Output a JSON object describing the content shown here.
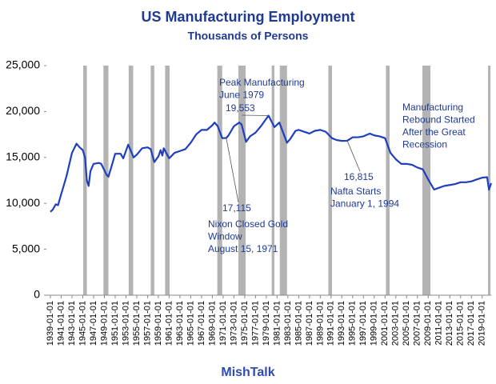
{
  "chart_data": {
    "type": "line",
    "title": "US Manufacturing Employment",
    "subtitle": "Thousands of Persons",
    "footer": "MishTalk",
    "color": "#1f3fbf",
    "recession_color": "#b3b3b3",
    "x": [
      "1939-01-01",
      "1939-06-01",
      "1940-01-01",
      "1940-06-01",
      "1941-01-01",
      "1942-01-01",
      "1943-01-01",
      "1943-11-01",
      "1944-06-01",
      "1945-01-01",
      "1945-06-01",
      "1945-10-01",
      "1946-02-01",
      "1946-06-01",
      "1947-01-01",
      "1948-01-01",
      "1948-06-01",
      "1949-06-01",
      "1949-10-01",
      "1950-06-01",
      "1951-01-01",
      "1952-01-01",
      "1952-07-01",
      "1953-06-01",
      "1954-06-01",
      "1955-01-01",
      "1956-01-01",
      "1957-01-01",
      "1957-08-01",
      "1958-04-01",
      "1959-01-01",
      "1959-06-01",
      "1959-10-01",
      "1960-01-01",
      "1961-01-01",
      "1962-01-01",
      "1963-01-01",
      "1964-01-01",
      "1965-01-01",
      "1966-01-01",
      "1967-01-01",
      "1968-01-01",
      "1969-01-01",
      "1969-06-01",
      "1970-01-01",
      "1970-11-01",
      "1971-08-01",
      "1972-01-01",
      "1973-01-01",
      "1974-01-01",
      "1974-06-01",
      "1975-04-01",
      "1976-01-01",
      "1977-01-01",
      "1978-01-01",
      "1979-06-01",
      "1980-07-01",
      "1981-06-01",
      "1982-11-01",
      "1983-06-01",
      "1984-06-01",
      "1985-01-01",
      "1986-01-01",
      "1987-01-01",
      "1988-01-01",
      "1989-01-01",
      "1990-01-01",
      "1991-03-01",
      "1992-01-01",
      "1993-01-01",
      "1994-01-01",
      "1995-01-01",
      "1996-01-01",
      "1997-01-01",
      "1998-03-01",
      "1999-01-01",
      "2000-01-01",
      "2001-01-01",
      "2002-01-01",
      "2003-01-01",
      "2004-01-01",
      "2005-01-01",
      "2006-01-01",
      "2007-01-01",
      "2008-01-01",
      "2009-01-01",
      "2010-02-01",
      "2011-01-01",
      "2012-01-01",
      "2013-01-01",
      "2014-01-01",
      "2015-01-01",
      "2016-01-01",
      "2017-01-01",
      "2018-01-01",
      "2019-01-01",
      "2019-12-01",
      "2020-04-01",
      "2020-09-01"
    ],
    "values": [
      9077,
      9300,
      9900,
      9800,
      11000,
      13000,
      15500,
      16500,
      16100,
      15800,
      15000,
      12500,
      11900,
      13500,
      14300,
      14400,
      14300,
      13100,
      12900,
      14200,
      15400,
      15400,
      14900,
      16400,
      15000,
      15300,
      16000,
      16100,
      15900,
      14500,
      15100,
      15800,
      15200,
      16000,
      14900,
      15500,
      15700,
      15900,
      16600,
      17500,
      18000,
      18000,
      18500,
      18800,
      18400,
      17100,
      17115,
      17400,
      18400,
      18800,
      18600,
      16700,
      17300,
      17700,
      18400,
      19553,
      18300,
      18800,
      16600,
      17000,
      17900,
      18000,
      17800,
      17600,
      17900,
      18000,
      17800,
      17100,
      16900,
      16800,
      16815,
      17200,
      17200,
      17300,
      17600,
      17400,
      17300,
      17100,
      15500,
      14800,
      14300,
      14300,
      14200,
      13900,
      13700,
      12600,
      11500,
      11700,
      11900,
      12000,
      12100,
      12300,
      12300,
      12400,
      12600,
      12800,
      12850,
      11500,
      12200
    ],
    "recessions": [
      [
        "1945-02-01",
        "1945-10-01"
      ],
      [
        "1948-11-01",
        "1949-10-01"
      ],
      [
        "1953-07-01",
        "1954-05-01"
      ],
      [
        "1957-08-01",
        "1958-04-01"
      ],
      [
        "1960-04-01",
        "1961-02-01"
      ],
      [
        "1969-12-01",
        "1970-11-01"
      ],
      [
        "1973-11-01",
        "1975-03-01"
      ],
      [
        "1980-01-01",
        "1980-07-01"
      ],
      [
        "1981-07-01",
        "1982-11-01"
      ],
      [
        "1990-07-01",
        "1991-03-01"
      ],
      [
        "2001-03-01",
        "2001-11-01"
      ],
      [
        "2007-12-01",
        "2009-06-01"
      ],
      [
        "2020-02-01",
        "2020-04-01"
      ]
    ],
    "xlim": [
      "1939-01-01",
      "2020-09-01"
    ],
    "xticks": [
      "1939-01-01",
      "1941-01-01",
      "1943-01-01",
      "1945-01-01",
      "1947-01-01",
      "1949-01-01",
      "1951-01-01",
      "1953-01-01",
      "1955-01-01",
      "1957-01-01",
      "1959-01-01",
      "1961-01-01",
      "1963-01-01",
      "1965-01-01",
      "1967-01-01",
      "1969-01-01",
      "1971-01-01",
      "1973-01-01",
      "1975-01-01",
      "1977-01-01",
      "1979-01-01",
      "1981-01-01",
      "1983-01-01",
      "1985-01-01",
      "1987-01-01",
      "1989-01-01",
      "1991-01-01",
      "1993-01-01",
      "1995-01-01",
      "1997-01-01",
      "1999-01-01",
      "2001-01-01",
      "2003-01-01",
      "2005-01-01",
      "2007-01-01",
      "2009-01-01",
      "2011-01-01",
      "2013-01-01",
      "2015-01-01",
      "2017-01-01",
      "2019-01-01"
    ],
    "ylim": [
      0,
      25000
    ],
    "yticks": [
      0,
      {
        "value": 5000,
        "label": "5,000"
      },
      {
        "value": 10000,
        "label": "10,000"
      },
      {
        "value": 15000,
        "label": "15,000"
      },
      {
        "value": 20000,
        "label": "20,000"
      },
      {
        "value": 25000,
        "label": "25,000"
      }
    ],
    "annotations": [
      {
        "text": [
          "Peak Manufacturing",
          "June 1979"
        ],
        "label": "19,553",
        "x": "1979-06-01",
        "value": 19553
      },
      {
        "text": [
          "Nixon Closed Gold",
          "Window",
          "August 15, 1971"
        ],
        "label": "17,115",
        "x": "1971-08-01",
        "value": 17115
      },
      {
        "text": [
          "Nafta Starts",
          "January 1, 1994"
        ],
        "label": "16,815",
        "x": "1994-01-01",
        "value": 16815
      },
      {
        "text": [
          "Manufacturing",
          "Rebound Started",
          "After the Great",
          "Recession"
        ]
      }
    ]
  }
}
